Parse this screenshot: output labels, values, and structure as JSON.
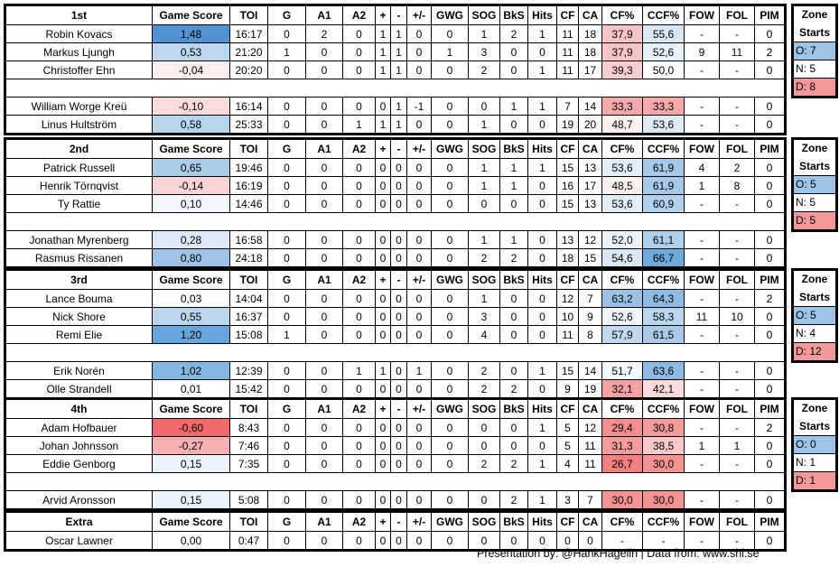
{
  "columns": [
    "Game Score",
    "TOI",
    "G",
    "A1",
    "A2",
    "+",
    "-",
    "+/-",
    "GWG",
    "SOG",
    "BkS",
    "Hits",
    "CF",
    "CA",
    "CF%",
    "CCF%",
    "FOW",
    "FOL",
    "PIM"
  ],
  "sections": [
    {
      "title": "1st",
      "top_rows": [
        {
          "name": "Robin Kovacs",
          "values": [
            "1,48",
            "16:17",
            "0",
            "2",
            "0",
            "1",
            "1",
            "0",
            "0",
            "1",
            "2",
            "1",
            "11",
            "18",
            "37,9",
            "55,6",
            "-",
            "-",
            "0"
          ],
          "colors": {
            "gs": "#4f93d0",
            "cf": "#f8c5c6",
            "ccf": "#d8e8f5"
          }
        },
        {
          "name": "Markus Ljungh",
          "values": [
            "0,53",
            "21:20",
            "1",
            "0",
            "0",
            "1",
            "1",
            "0",
            "1",
            "3",
            "0",
            "0",
            "11",
            "18",
            "37,9",
            "52,6",
            "9",
            "11",
            "2"
          ],
          "colors": {
            "gs": "#bdd7ee",
            "cf": "#f8c5c6",
            "ccf": "#e6f0fa"
          }
        },
        {
          "name": "Christoffer Ehn",
          "values": [
            "-0,04",
            "20:20",
            "0",
            "0",
            "0",
            "1",
            "1",
            "0",
            "0",
            "2",
            "0",
            "1",
            "11",
            "17",
            "39,3",
            "50,0",
            "-",
            "-",
            "0"
          ],
          "colors": {
            "gs": "#fdeeee",
            "cf": "#f9cdce",
            "ccf": "#ffffff"
          }
        }
      ],
      "bottom_rows": [
        {
          "name": "William Worge Kreü",
          "values": [
            "-0,10",
            "16:14",
            "0",
            "0",
            "0",
            "0",
            "1",
            "-1",
            "0",
            "0",
            "1",
            "1",
            "7",
            "14",
            "33,3",
            "33,3",
            "-",
            "-",
            "0"
          ],
          "colors": {
            "gs": "#fadbdc",
            "cf": "#f6a9aa",
            "ccf": "#f6a9aa"
          }
        },
        {
          "name": "Linus Hultström",
          "values": [
            "0,58",
            "25:33",
            "0",
            "0",
            "1",
            "1",
            "1",
            "0",
            "0",
            "1",
            "0",
            "0",
            "19",
            "20",
            "48,7",
            "53,6",
            "-",
            "-",
            "0"
          ],
          "colors": {
            "gs": "#b9d5ed",
            "cf": "#fdf1f1",
            "ccf": "#deebf7"
          }
        }
      ],
      "zone": {
        "title1": "Zone",
        "title2": "Starts",
        "o": "O: 7",
        "n": "N: 5",
        "d": "D: 8"
      }
    },
    {
      "title": "2nd",
      "top_rows": [
        {
          "name": "Patrick Russell",
          "values": [
            "0,65",
            "19:46",
            "0",
            "0",
            "0",
            "0",
            "0",
            "0",
            "0",
            "1",
            "1",
            "1",
            "15",
            "13",
            "53,6",
            "61,9",
            "4",
            "2",
            "0"
          ],
          "colors": {
            "gs": "#accdea",
            "cf": "#e1edf8",
            "ccf": "#a6c9e9"
          }
        },
        {
          "name": "Henrik Törnqvist",
          "values": [
            "-0,14",
            "16:19",
            "0",
            "0",
            "0",
            "0",
            "0",
            "0",
            "0",
            "1",
            "1",
            "0",
            "16",
            "17",
            "48,5",
            "61,9",
            "1",
            "8",
            "0"
          ],
          "colors": {
            "gs": "#f9d4d5",
            "cf": "#fdf0f0",
            "ccf": "#a6c9e9"
          }
        },
        {
          "name": "Ty Rattie",
          "values": [
            "0,10",
            "14:46",
            "0",
            "0",
            "0",
            "0",
            "0",
            "0",
            "0",
            "0",
            "0",
            "0",
            "15",
            "13",
            "53,6",
            "60,9",
            "-",
            "-",
            "0"
          ],
          "colors": {
            "gs": "#f0f6fc",
            "cf": "#e1edf8",
            "ccf": "#b2d1ec"
          }
        }
      ],
      "bottom_rows": [
        {
          "name": "Jonathan Myrenberg",
          "values": [
            "0,28",
            "16:58",
            "0",
            "0",
            "0",
            "0",
            "0",
            "0",
            "0",
            "1",
            "1",
            "0",
            "13",
            "12",
            "52,0",
            "61,1",
            "-",
            "-",
            "0"
          ],
          "colors": {
            "gs": "#dde9f6",
            "cf": "#ecf3fb",
            "ccf": "#afcfeb"
          }
        },
        {
          "name": "Rasmus Rissanen",
          "values": [
            "0,80",
            "24:18",
            "0",
            "0",
            "0",
            "0",
            "0",
            "0",
            "0",
            "2",
            "2",
            "0",
            "18",
            "15",
            "54,6",
            "66,7",
            "-",
            "-",
            "0"
          ],
          "colors": {
            "gs": "#9dc3e6",
            "cf": "#d9e8f6",
            "ccf": "#6eaadb"
          }
        }
      ],
      "zone": {
        "title1": "Zone",
        "title2": "Starts",
        "o": "O: 5",
        "n": "N: 5",
        "d": "D: 5"
      }
    },
    {
      "title": "3rd",
      "top_rows": [
        {
          "name": "Lance Bouma",
          "values": [
            "0,03",
            "14:04",
            "0",
            "0",
            "0",
            "0",
            "0",
            "0",
            "0",
            "1",
            "0",
            "0",
            "12",
            "7",
            "63,2",
            "64,3",
            "-",
            "-",
            "2"
          ],
          "colors": {
            "gs": "#fafcfe",
            "cf": "#9ac2e5",
            "ccf": "#8ebbe3"
          }
        },
        {
          "name": "Nick Shore",
          "values": [
            "0,55",
            "16:37",
            "0",
            "0",
            "0",
            "0",
            "0",
            "0",
            "0",
            "3",
            "0",
            "0",
            "10",
            "9",
            "52,6",
            "58,3",
            "11",
            "10",
            "0"
          ],
          "colors": {
            "gs": "#bcd6ee",
            "cf": "#eef5fb",
            "ccf": "#bad6ee"
          }
        },
        {
          "name": "Remi Elie",
          "values": [
            "1,20",
            "15:08",
            "1",
            "0",
            "0",
            "0",
            "0",
            "0",
            "0",
            "4",
            "0",
            "0",
            "11",
            "8",
            "57,9",
            "61,5",
            "-",
            "-",
            "0"
          ],
          "colors": {
            "gs": "#66a6da",
            "cf": "#c0d9ef",
            "ccf": "#a9cbe9"
          }
        }
      ],
      "bottom_rows": [
        {
          "name": "Erik Norén",
          "values": [
            "1,02",
            "12:39",
            "0",
            "0",
            "1",
            "1",
            "0",
            "1",
            "0",
            "2",
            "0",
            "1",
            "15",
            "14",
            "51,7",
            "63,6",
            "-",
            "-",
            "0"
          ],
          "colors": {
            "gs": "#83b7e1",
            "cf": "#f3f8fc",
            "ccf": "#8dbae2"
          }
        },
        {
          "name": "Olle Strandell",
          "values": [
            "0,01",
            "15:42",
            "0",
            "0",
            "0",
            "0",
            "0",
            "0",
            "0",
            "2",
            "2",
            "0",
            "9",
            "19",
            "32,1",
            "42,1",
            "-",
            "-",
            "0"
          ],
          "colors": {
            "gs": "#ffffff",
            "cf": "#f6a2a3",
            "ccf": "#fadadb"
          }
        }
      ],
      "zone": {
        "title1": "Zone",
        "title2": "Starts",
        "o": "O: 5",
        "n": "N: 4",
        "d": "D: 12"
      }
    },
    {
      "title": "4th",
      "top_rows": [
        {
          "name": "Adam Hofbauer",
          "values": [
            "-0,60",
            "8:43",
            "0",
            "0",
            "0",
            "0",
            "0",
            "0",
            "0",
            "0",
            "0",
            "1",
            "5",
            "12",
            "29,4",
            "30,8",
            "-",
            "-",
            "2"
          ],
          "colors": {
            "gs": "#f4696b",
            "cf": "#f48d8f",
            "ccf": "#f59a9b"
          }
        },
        {
          "name": "Johan Johnsson",
          "values": [
            "-0,27",
            "7:46",
            "0",
            "0",
            "0",
            "0",
            "0",
            "0",
            "0",
            "0",
            "0",
            "0",
            "5",
            "11",
            "31,3",
            "38,5",
            "1",
            "1",
            "0"
          ],
          "colors": {
            "gs": "#f8b1b2",
            "cf": "#f59c9d",
            "ccf": "#f9c8c9"
          }
        },
        {
          "name": "Eddie Genborg",
          "values": [
            "0,15",
            "7:35",
            "0",
            "0",
            "0",
            "0",
            "0",
            "0",
            "0",
            "2",
            "2",
            "1",
            "4",
            "11",
            "26,7",
            "30,0",
            "-",
            "-",
            "0"
          ],
          "colors": {
            "gs": "#eaf2fb",
            "cf": "#f37f81",
            "ccf": "#f49394"
          }
        }
      ],
      "bottom_rows": [
        {
          "name": "Arvid Aronsson",
          "values": [
            "0,15",
            "5:08",
            "0",
            "0",
            "0",
            "0",
            "0",
            "0",
            "0",
            "0",
            "2",
            "1",
            "3",
            "7",
            "30,0",
            "30,0",
            "-",
            "-",
            "0"
          ],
          "colors": {
            "gs": "#eaf2fb",
            "cf": "#f49394",
            "ccf": "#f49394"
          }
        }
      ],
      "zone": {
        "title1": "Zone",
        "title2": "Starts",
        "o": "O: 0",
        "n": "N: 1",
        "d": "D: 1"
      }
    },
    {
      "title": "Extra",
      "top_rows": [
        {
          "name": "Oscar Lawner",
          "values": [
            "0,00",
            "0:47",
            "0",
            "0",
            "0",
            "0",
            "0",
            "0",
            "0",
            "0",
            "0",
            "0",
            "0",
            "0",
            "-",
            "-",
            "-",
            "-",
            "0"
          ],
          "colors": {
            "gs": "#ffffff",
            "cf": "#ffffff",
            "ccf": "#ffffff"
          }
        }
      ],
      "bottom_rows": []
    }
  ],
  "zone_colors": {
    "o": "#9dc3e6",
    "n": "#ffffff",
    "d": "#f4999a"
  },
  "footer": "Presentation by: @HankHagelin | Data from: www.shl.se"
}
